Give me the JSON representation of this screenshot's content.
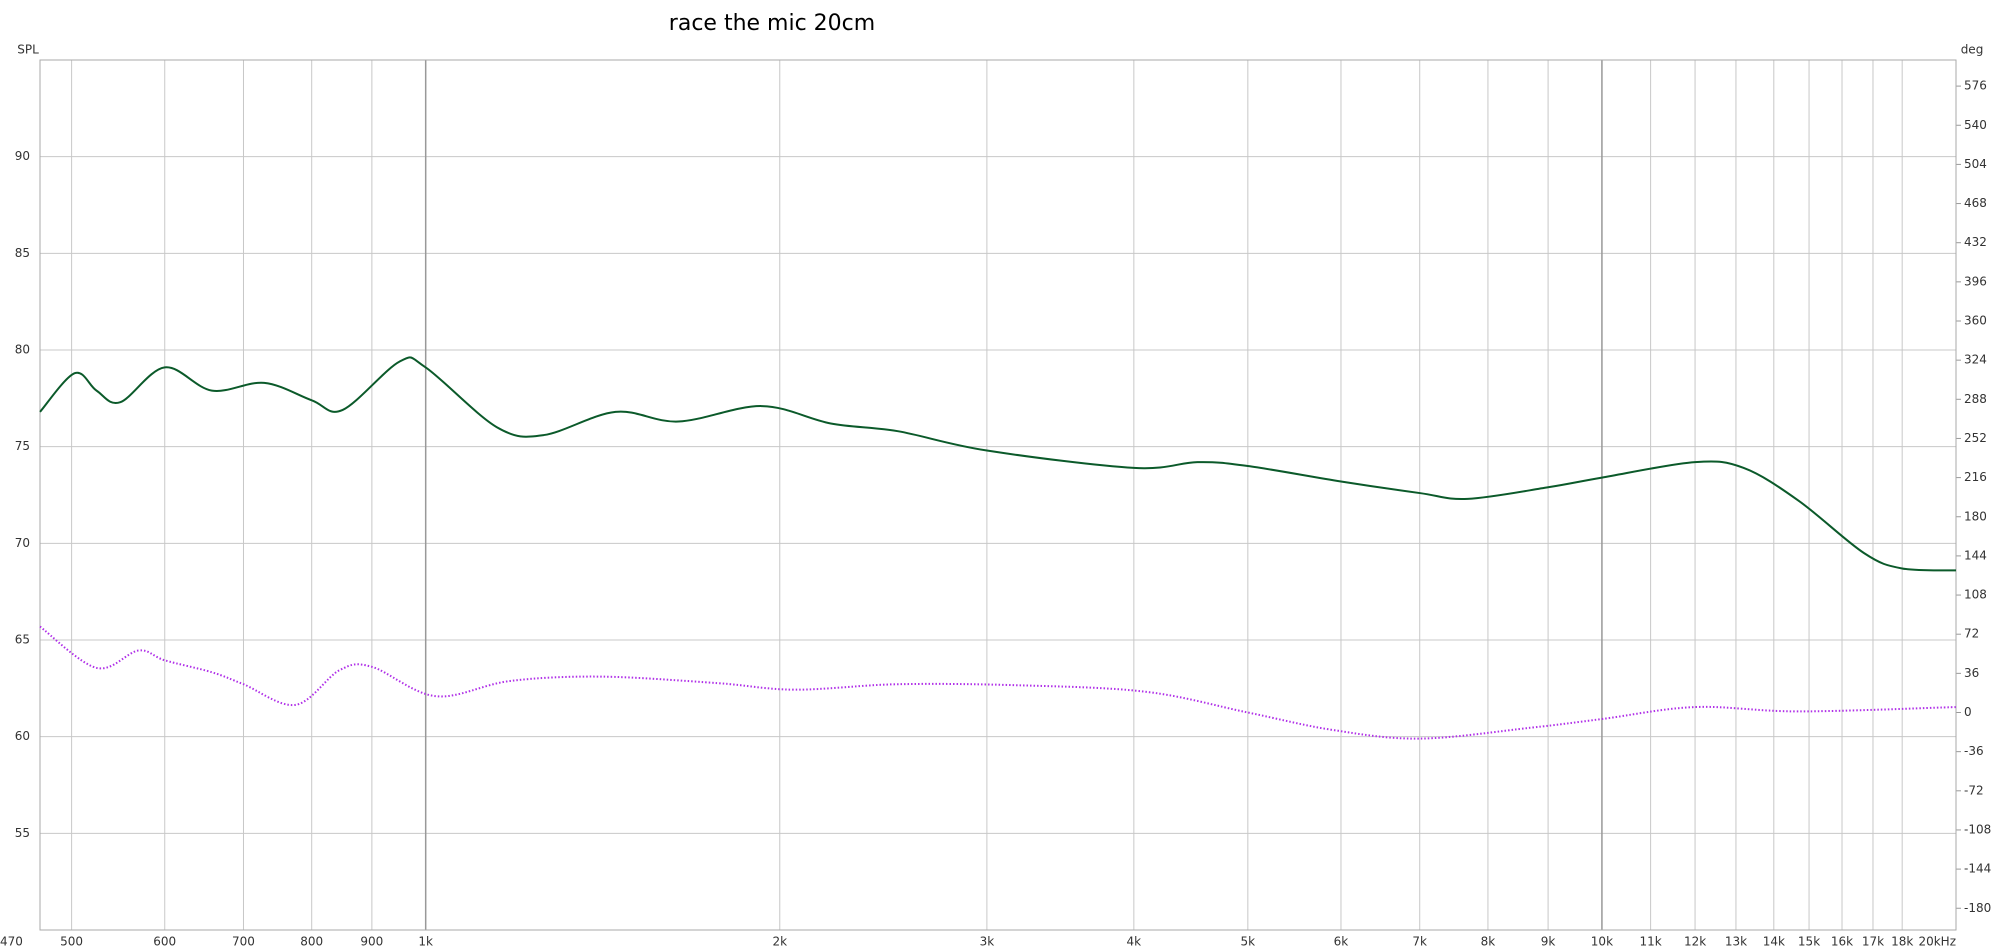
{
  "chart_data": {
    "type": "line",
    "title": "race the mic 20cm",
    "y_label": "SPL",
    "y2_label": "deg",
    "xscale": "log",
    "grid": true,
    "xlim": [
      470,
      20000
    ],
    "ylim": [
      50,
      95
    ],
    "y2lim": [
      -200,
      600
    ],
    "xticks": [
      470,
      500,
      600,
      700,
      800,
      900,
      {
        "value": 1000,
        "label": "1k"
      },
      {
        "value": 2000,
        "label": "2k"
      },
      {
        "value": 3000,
        "label": "3k"
      },
      {
        "value": 4000,
        "label": "4k"
      },
      {
        "value": 5000,
        "label": "5k"
      },
      {
        "value": 6000,
        "label": "6k"
      },
      {
        "value": 7000,
        "label": "7k"
      },
      {
        "value": 8000,
        "label": "8k"
      },
      {
        "value": 9000,
        "label": "9k"
      },
      {
        "value": 10000,
        "label": "10k"
      },
      {
        "value": 11000,
        "label": "11k"
      },
      {
        "value": 12000,
        "label": "12k"
      },
      {
        "value": 13000,
        "label": "13k"
      },
      {
        "value": 14000,
        "label": "14k"
      },
      {
        "value": 15000,
        "label": "15k"
      },
      {
        "value": 16000,
        "label": "16k"
      },
      {
        "value": 17000,
        "label": "17k"
      },
      {
        "value": 18000,
        "label": "18k"
      },
      {
        "value": 20000,
        "label": "20kHz"
      }
    ],
    "yticks": [
      55,
      60,
      65,
      70,
      75,
      80,
      85,
      90
    ],
    "y2ticks": [
      -180,
      -144,
      -108,
      -72,
      -36,
      0,
      36,
      72,
      108,
      144,
      180,
      216,
      252,
      288,
      324,
      360,
      396,
      432,
      468,
      504,
      540,
      576
    ],
    "series": [
      {
        "color": "#0b5a2a",
        "style": "solid",
        "x": [
          470,
          503,
          525,
          550,
          600,
          658,
          729,
          800,
          850,
          950,
          1000,
          1150,
          1260,
          1450,
          1640,
          1930,
          2210,
          2520,
          3000,
          4000,
          4530,
          5000,
          6000,
          7000,
          7690,
          9000,
          10000,
          12000,
          13200,
          14700,
          16700,
          18000,
          20000
        ],
        "values": [
          76.8,
          78.8,
          77.9,
          77.3,
          79.1,
          77.9,
          78.3,
          77.4,
          76.9,
          79.4,
          79.1,
          76.0,
          75.6,
          76.8,
          76.3,
          77.1,
          76.2,
          75.8,
          74.8,
          73.9,
          74.2,
          74.0,
          73.2,
          72.6,
          72.3,
          72.9,
          73.4,
          74.2,
          73.9,
          72.2,
          69.5,
          68.7,
          68.6
        ]
      },
      {
        "color": "#b030e8",
        "style": "dotted",
        "axis": "y2",
        "x": [
          470,
          525,
          570,
          600,
          658,
          700,
          775,
          845,
          900,
          1020,
          1180,
          1410,
          1770,
          2060,
          2520,
          3200,
          4100,
          5000,
          5900,
          7000,
          8700,
          10000,
          12000,
          14700,
          20000
        ],
        "values": [
          79,
          41,
          57,
          48,
          37,
          26,
          7,
          39,
          42,
          15,
          29,
          33,
          27,
          21,
          26,
          25,
          19,
          0,
          -16,
          -24,
          -14,
          -6,
          5,
          1,
          5
        ]
      }
    ]
  }
}
